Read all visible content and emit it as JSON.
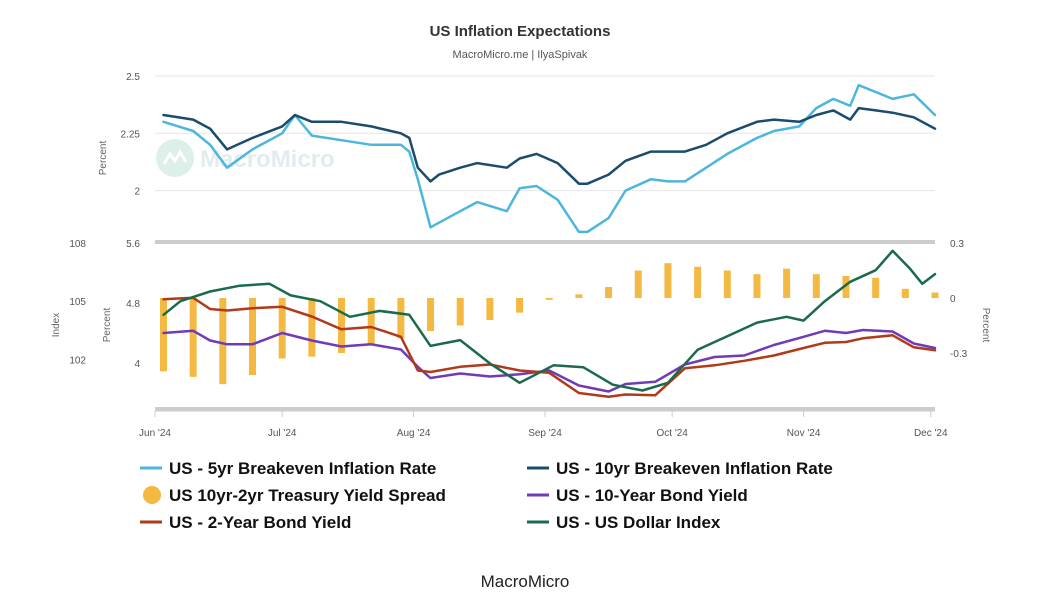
{
  "footer": "MacroMicro",
  "watermark": "MacroMicro",
  "chart_data": {
    "type": "line",
    "title": "US Inflation Expectations",
    "subtitle": "MacroMicro.me | IlyaSpivak",
    "x_ticks": [
      "Jun '24",
      "Jul '24",
      "Aug '24",
      "Sep '24",
      "Oct '24",
      "Nov '24",
      "Dec '24"
    ],
    "x_range": [
      "2024-06-01",
      "2024-12-02"
    ],
    "panels": {
      "top": {
        "ylabel": "Percent",
        "y_ticks": [
          "2.5",
          "2.25",
          "2"
        ],
        "ylim": [
          1.85,
          2.5
        ]
      },
      "bottom": {
        "left_percent_label": "Percent",
        "left_percent_ticks": [
          "5.6",
          "4.8",
          "4"
        ],
        "left_percent_range": [
          3.4,
          5.6
        ],
        "left_index_label": "Index",
        "left_index_ticks": [
          "108",
          "105",
          "102"
        ],
        "left_index_range": [
          99.5,
          108
        ],
        "right_label": "Percent",
        "right_ticks": [
          "0.3",
          "0",
          "-0.3"
        ],
        "right_range": [
          -0.6,
          0.3
        ]
      }
    },
    "series": [
      {
        "name": "US - 5yr Breakeven Inflation Rate",
        "panel": "top",
        "axis": "top",
        "kind": "line",
        "color": "#4db6dc",
        "points": [
          [
            "2024-06-03",
            2.3
          ],
          [
            "2024-06-10",
            2.26
          ],
          [
            "2024-06-14",
            2.2
          ],
          [
            "2024-06-18",
            2.1
          ],
          [
            "2024-06-24",
            2.18
          ],
          [
            "2024-07-01",
            2.25
          ],
          [
            "2024-07-04",
            2.33
          ],
          [
            "2024-07-08",
            2.24
          ],
          [
            "2024-07-15",
            2.22
          ],
          [
            "2024-07-22",
            2.2
          ],
          [
            "2024-07-29",
            2.2
          ],
          [
            "2024-07-31",
            2.17
          ],
          [
            "2024-08-02",
            2.05
          ],
          [
            "2024-08-05",
            1.84
          ],
          [
            "2024-08-07",
            1.86
          ],
          [
            "2024-08-12",
            1.91
          ],
          [
            "2024-08-16",
            1.95
          ],
          [
            "2024-08-23",
            1.91
          ],
          [
            "2024-08-26",
            2.01
          ],
          [
            "2024-08-30",
            2.02
          ],
          [
            "2024-09-04",
            1.96
          ],
          [
            "2024-09-09",
            1.82
          ],
          [
            "2024-09-11",
            1.82
          ],
          [
            "2024-09-16",
            1.88
          ],
          [
            "2024-09-20",
            2.0
          ],
          [
            "2024-09-26",
            2.05
          ],
          [
            "2024-09-30",
            2.04
          ],
          [
            "2024-10-04",
            2.04
          ],
          [
            "2024-10-09",
            2.1
          ],
          [
            "2024-10-14",
            2.16
          ],
          [
            "2024-10-21",
            2.23
          ],
          [
            "2024-10-25",
            2.26
          ],
          [
            "2024-10-31",
            2.28
          ],
          [
            "2024-11-04",
            2.36
          ],
          [
            "2024-11-08",
            2.4
          ],
          [
            "2024-11-12",
            2.37
          ],
          [
            "2024-11-14",
            2.46
          ],
          [
            "2024-11-18",
            2.43
          ],
          [
            "2024-11-22",
            2.4
          ],
          [
            "2024-11-27",
            2.42
          ],
          [
            "2024-12-02",
            2.33
          ]
        ]
      },
      {
        "name": "US - 10yr Breakeven Inflation Rate",
        "panel": "top",
        "axis": "top",
        "kind": "line",
        "color": "#1a4c6e",
        "points": [
          [
            "2024-06-03",
            2.33
          ],
          [
            "2024-06-10",
            2.31
          ],
          [
            "2024-06-14",
            2.27
          ],
          [
            "2024-06-18",
            2.18
          ],
          [
            "2024-06-24",
            2.23
          ],
          [
            "2024-07-01",
            2.28
          ],
          [
            "2024-07-04",
            2.33
          ],
          [
            "2024-07-08",
            2.3
          ],
          [
            "2024-07-15",
            2.3
          ],
          [
            "2024-07-22",
            2.28
          ],
          [
            "2024-07-29",
            2.25
          ],
          [
            "2024-07-31",
            2.23
          ],
          [
            "2024-08-02",
            2.1
          ],
          [
            "2024-08-05",
            2.04
          ],
          [
            "2024-08-07",
            2.07
          ],
          [
            "2024-08-12",
            2.1
          ],
          [
            "2024-08-16",
            2.12
          ],
          [
            "2024-08-23",
            2.1
          ],
          [
            "2024-08-26",
            2.14
          ],
          [
            "2024-08-30",
            2.16
          ],
          [
            "2024-09-04",
            2.12
          ],
          [
            "2024-09-09",
            2.03
          ],
          [
            "2024-09-11",
            2.03
          ],
          [
            "2024-09-16",
            2.07
          ],
          [
            "2024-09-20",
            2.13
          ],
          [
            "2024-09-26",
            2.17
          ],
          [
            "2024-09-30",
            2.17
          ],
          [
            "2024-10-04",
            2.17
          ],
          [
            "2024-10-09",
            2.2
          ],
          [
            "2024-10-14",
            2.25
          ],
          [
            "2024-10-21",
            2.3
          ],
          [
            "2024-10-25",
            2.31
          ],
          [
            "2024-10-31",
            2.3
          ],
          [
            "2024-11-04",
            2.33
          ],
          [
            "2024-11-08",
            2.35
          ],
          [
            "2024-11-12",
            2.31
          ],
          [
            "2024-11-14",
            2.36
          ],
          [
            "2024-11-18",
            2.35
          ],
          [
            "2024-11-22",
            2.34
          ],
          [
            "2024-11-27",
            2.32
          ],
          [
            "2024-12-02",
            2.27
          ]
        ]
      },
      {
        "name": "US 10yr-2yr Treasury Yield Spread",
        "panel": "bottom",
        "axis": "right",
        "kind": "bar",
        "color": "#f4b942",
        "points": [
          [
            "2024-06-03",
            -0.4
          ],
          [
            "2024-06-10",
            -0.43
          ],
          [
            "2024-06-17",
            -0.47
          ],
          [
            "2024-06-24",
            -0.42
          ],
          [
            "2024-07-01",
            -0.33
          ],
          [
            "2024-07-08",
            -0.32
          ],
          [
            "2024-07-15",
            -0.3
          ],
          [
            "2024-07-22",
            -0.25
          ],
          [
            "2024-07-29",
            -0.22
          ],
          [
            "2024-08-05",
            -0.18
          ],
          [
            "2024-08-12",
            -0.15
          ],
          [
            "2024-08-19",
            -0.12
          ],
          [
            "2024-08-26",
            -0.08
          ],
          [
            "2024-09-02",
            -0.01
          ],
          [
            "2024-09-09",
            0.02
          ],
          [
            "2024-09-16",
            0.06
          ],
          [
            "2024-09-23",
            0.15
          ],
          [
            "2024-09-30",
            0.19
          ],
          [
            "2024-10-07",
            0.17
          ],
          [
            "2024-10-14",
            0.15
          ],
          [
            "2024-10-21",
            0.13
          ],
          [
            "2024-10-28",
            0.16
          ],
          [
            "2024-11-04",
            0.13
          ],
          [
            "2024-11-11",
            0.12
          ],
          [
            "2024-11-18",
            0.11
          ],
          [
            "2024-11-25",
            0.05
          ],
          [
            "2024-12-02",
            0.03
          ]
        ]
      },
      {
        "name": "US - 10-Year Bond Yield",
        "panel": "bottom",
        "axis": "left_percent",
        "kind": "line",
        "color": "#6f3bb7",
        "points": [
          [
            "2024-06-03",
            4.4
          ],
          [
            "2024-06-10",
            4.43
          ],
          [
            "2024-06-14",
            4.3
          ],
          [
            "2024-06-18",
            4.25
          ],
          [
            "2024-06-24",
            4.25
          ],
          [
            "2024-07-01",
            4.4
          ],
          [
            "2024-07-08",
            4.3
          ],
          [
            "2024-07-15",
            4.22
          ],
          [
            "2024-07-22",
            4.25
          ],
          [
            "2024-07-29",
            4.18
          ],
          [
            "2024-08-02",
            3.95
          ],
          [
            "2024-08-05",
            3.8
          ],
          [
            "2024-08-12",
            3.86
          ],
          [
            "2024-08-19",
            3.82
          ],
          [
            "2024-08-26",
            3.85
          ],
          [
            "2024-09-02",
            3.9
          ],
          [
            "2024-09-09",
            3.7
          ],
          [
            "2024-09-16",
            3.62
          ],
          [
            "2024-09-20",
            3.72
          ],
          [
            "2024-09-27",
            3.75
          ],
          [
            "2024-10-04",
            3.98
          ],
          [
            "2024-10-11",
            4.08
          ],
          [
            "2024-10-18",
            4.1
          ],
          [
            "2024-10-25",
            4.24
          ],
          [
            "2024-11-01",
            4.35
          ],
          [
            "2024-11-06",
            4.43
          ],
          [
            "2024-11-11",
            4.4
          ],
          [
            "2024-11-15",
            4.44
          ],
          [
            "2024-11-22",
            4.42
          ],
          [
            "2024-11-27",
            4.26
          ],
          [
            "2024-12-02",
            4.2
          ]
        ]
      },
      {
        "name": "US - 2-Year Bond Yield",
        "panel": "bottom",
        "axis": "left_percent",
        "kind": "line",
        "color": "#b03a1a",
        "points": [
          [
            "2024-06-03",
            4.85
          ],
          [
            "2024-06-10",
            4.87
          ],
          [
            "2024-06-14",
            4.72
          ],
          [
            "2024-06-18",
            4.7
          ],
          [
            "2024-06-24",
            4.73
          ],
          [
            "2024-07-01",
            4.75
          ],
          [
            "2024-07-08",
            4.62
          ],
          [
            "2024-07-15",
            4.45
          ],
          [
            "2024-07-22",
            4.48
          ],
          [
            "2024-07-29",
            4.35
          ],
          [
            "2024-08-02",
            3.9
          ],
          [
            "2024-08-05",
            3.88
          ],
          [
            "2024-08-12",
            3.95
          ],
          [
            "2024-08-19",
            3.98
          ],
          [
            "2024-08-26",
            3.9
          ],
          [
            "2024-09-02",
            3.87
          ],
          [
            "2024-09-09",
            3.6
          ],
          [
            "2024-09-16",
            3.55
          ],
          [
            "2024-09-20",
            3.58
          ],
          [
            "2024-09-27",
            3.57
          ],
          [
            "2024-10-04",
            3.93
          ],
          [
            "2024-10-11",
            3.97
          ],
          [
            "2024-10-18",
            4.03
          ],
          [
            "2024-10-25",
            4.1
          ],
          [
            "2024-11-01",
            4.2
          ],
          [
            "2024-11-06",
            4.27
          ],
          [
            "2024-11-11",
            4.28
          ],
          [
            "2024-11-15",
            4.33
          ],
          [
            "2024-11-22",
            4.37
          ],
          [
            "2024-11-27",
            4.21
          ],
          [
            "2024-12-02",
            4.17
          ]
        ]
      },
      {
        "name": "US - US Dollar Index",
        "panel": "bottom",
        "axis": "left_index",
        "kind": "line",
        "color": "#1b6b4a",
        "points": [
          [
            "2024-06-03",
            104.3
          ],
          [
            "2024-06-07",
            105.0
          ],
          [
            "2024-06-14",
            105.5
          ],
          [
            "2024-06-21",
            105.8
          ],
          [
            "2024-06-28",
            105.9
          ],
          [
            "2024-07-03",
            105.3
          ],
          [
            "2024-07-10",
            105.0
          ],
          [
            "2024-07-17",
            104.2
          ],
          [
            "2024-07-24",
            104.5
          ],
          [
            "2024-07-31",
            104.3
          ],
          [
            "2024-08-05",
            102.7
          ],
          [
            "2024-08-12",
            103.0
          ],
          [
            "2024-08-19",
            101.8
          ],
          [
            "2024-08-26",
            100.8
          ],
          [
            "2024-09-03",
            101.7
          ],
          [
            "2024-09-10",
            101.6
          ],
          [
            "2024-09-17",
            100.7
          ],
          [
            "2024-09-24",
            100.4
          ],
          [
            "2024-09-30",
            100.8
          ],
          [
            "2024-10-07",
            102.5
          ],
          [
            "2024-10-14",
            103.2
          ],
          [
            "2024-10-21",
            103.9
          ],
          [
            "2024-10-28",
            104.2
          ],
          [
            "2024-11-01",
            104.0
          ],
          [
            "2024-11-06",
            105.0
          ],
          [
            "2024-11-12",
            106.0
          ],
          [
            "2024-11-18",
            106.6
          ],
          [
            "2024-11-22",
            107.6
          ],
          [
            "2024-11-26",
            106.7
          ],
          [
            "2024-11-29",
            105.9
          ],
          [
            "2024-12-02",
            106.4
          ]
        ]
      }
    ]
  }
}
